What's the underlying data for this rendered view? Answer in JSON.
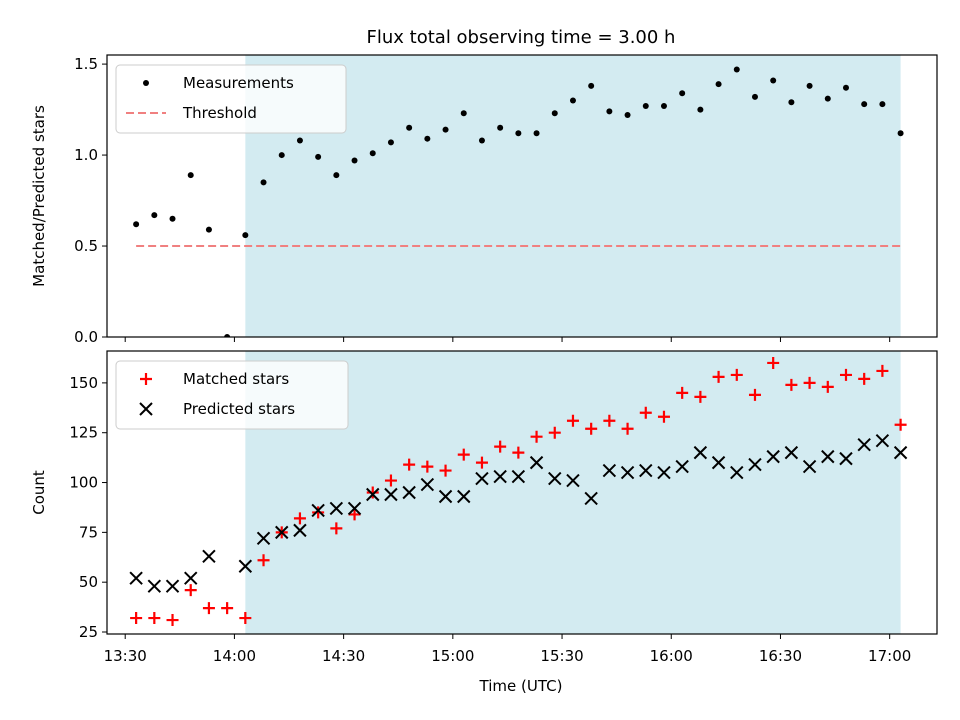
{
  "title": "Flux total observing time = 3.00 h",
  "xlabel": "Time (UTC)",
  "x_ticks": [
    "13:30",
    "14:00",
    "14:30",
    "15:00",
    "15:30",
    "16:00",
    "16:30",
    "17:00"
  ],
  "colors": {
    "shade": "#d3ebf1",
    "measurements": "#000000",
    "threshold": "#f08080",
    "matched": "#ff0000",
    "predicted": "#000000"
  },
  "chart_data": [
    {
      "type": "scatter",
      "ylabel": "Matched/Predicted stars",
      "xlim": [
        "13:25",
        "17:13"
      ],
      "ylim": [
        0,
        1.55
      ],
      "y_ticks": [
        "0.0",
        "0.5",
        "1.0",
        "1.5"
      ],
      "shaded_x_range": [
        "14:03",
        "17:03"
      ],
      "legend_position": "top-left",
      "series": [
        {
          "name": "Measurements",
          "marker": "dot",
          "x": [
            "13:33",
            "13:38",
            "13:43",
            "13:48",
            "13:53",
            "13:58",
            "14:03",
            "14:08",
            "14:13",
            "14:18",
            "14:23",
            "14:28",
            "14:33",
            "14:38",
            "14:43",
            "14:48",
            "14:53",
            "14:58",
            "15:03",
            "15:08",
            "15:13",
            "15:18",
            "15:23",
            "15:28",
            "15:33",
            "15:38",
            "15:43",
            "15:48",
            "15:53",
            "15:58",
            "16:03",
            "16:08",
            "16:13",
            "16:18",
            "16:23",
            "16:28",
            "16:33",
            "16:38",
            "16:43",
            "16:48",
            "16:53",
            "16:58",
            "17:03"
          ],
          "y": [
            0.62,
            0.67,
            0.65,
            0.89,
            0.59,
            0.0,
            0.56,
            0.85,
            1.0,
            1.08,
            0.99,
            0.89,
            0.97,
            1.01,
            1.07,
            1.15,
            1.09,
            1.14,
            1.23,
            1.08,
            1.15,
            1.12,
            1.12,
            1.23,
            1.3,
            1.38,
            1.24,
            1.22,
            1.27,
            1.27,
            1.34,
            1.25,
            1.39,
            1.47,
            1.32,
            1.41,
            1.29,
            1.38,
            1.31,
            1.37,
            1.28,
            1.28,
            1.12
          ]
        },
        {
          "name": "Threshold",
          "marker": "dashed-line",
          "x": [
            "13:33",
            "17:03"
          ],
          "y": [
            0.5,
            0.5
          ]
        }
      ]
    },
    {
      "type": "scatter",
      "ylabel": "Count",
      "xlim": [
        "13:25",
        "17:13"
      ],
      "ylim": [
        24,
        166
      ],
      "y_ticks": [
        "25",
        "50",
        "75",
        "100",
        "125",
        "150"
      ],
      "shaded_x_range": [
        "14:03",
        "17:03"
      ],
      "legend_position": "top-left",
      "series": [
        {
          "name": "Matched stars",
          "marker": "plus",
          "x": [
            "13:33",
            "13:38",
            "13:43",
            "13:48",
            "13:53",
            "13:58",
            "14:03",
            "14:08",
            "14:13",
            "14:18",
            "14:23",
            "14:28",
            "14:33",
            "14:38",
            "14:43",
            "14:48",
            "14:53",
            "14:58",
            "15:03",
            "15:08",
            "15:13",
            "15:18",
            "15:23",
            "15:28",
            "15:33",
            "15:38",
            "15:43",
            "15:48",
            "15:53",
            "15:58",
            "16:03",
            "16:08",
            "16:13",
            "16:18",
            "16:23",
            "16:28",
            "16:33",
            "16:38",
            "16:43",
            "16:48",
            "16:53",
            "16:58",
            "17:03"
          ],
          "y": [
            32,
            32,
            31,
            46,
            37,
            37,
            32,
            61,
            75,
            82,
            85,
            77,
            84,
            95,
            101,
            109,
            108,
            106,
            114,
            110,
            118,
            115,
            123,
            125,
            131,
            127,
            131,
            127,
            135,
            133,
            145,
            143,
            153,
            154,
            144,
            160,
            149,
            150,
            148,
            154,
            152,
            156,
            129
          ]
        },
        {
          "name": "Predicted stars",
          "marker": "x",
          "x": [
            "13:33",
            "13:38",
            "13:43",
            "13:48",
            "13:53",
            "14:03",
            "14:08",
            "14:13",
            "14:18",
            "14:23",
            "14:28",
            "14:33",
            "14:38",
            "14:43",
            "14:48",
            "14:53",
            "14:58",
            "15:03",
            "15:08",
            "15:13",
            "15:18",
            "15:23",
            "15:28",
            "15:33",
            "15:38",
            "15:43",
            "15:48",
            "15:53",
            "15:58",
            "16:03",
            "16:08",
            "16:13",
            "16:18",
            "16:23",
            "16:28",
            "16:33",
            "16:38",
            "16:43",
            "16:48",
            "16:53",
            "16:58",
            "17:03"
          ],
          "y": [
            52,
            48,
            48,
            52,
            63,
            58,
            72,
            75,
            76,
            86,
            87,
            87,
            94,
            94,
            95,
            99,
            93,
            93,
            102,
            103,
            103,
            110,
            102,
            101,
            92,
            106,
            105,
            106,
            105,
            108,
            115,
            110,
            105,
            109,
            113,
            115,
            108,
            113,
            112,
            119,
            121,
            115
          ]
        }
      ]
    }
  ]
}
